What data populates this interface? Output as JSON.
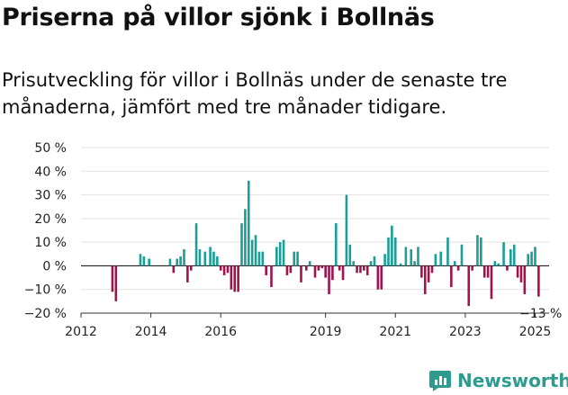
{
  "header": {
    "title": "Priserna på villor sjönk i Bollnäs",
    "subtitle": "Prisutveckling för villor i Bollnäs under de senaste tre månaderna, jämfört med tre månader tidigare."
  },
  "brand": {
    "name": "Newsworthy",
    "color": "#2f9b8e",
    "icon": "newsworthy-logo-icon"
  },
  "colors": {
    "positive": "#1a9e96",
    "negative": "#a0134e"
  },
  "chart_data": {
    "type": "bar",
    "xlim": [
      2012,
      2025.4
    ],
    "ylim": [
      -20,
      50
    ],
    "y_ticks": [
      50,
      40,
      30,
      20,
      10,
      0,
      -10,
      -20
    ],
    "y_tick_labels": [
      "50 %",
      "40 %",
      "30 %",
      "20 %",
      "10 %",
      "0 %",
      "−10 %",
      "−20 %"
    ],
    "x_ticks": [
      2012,
      2014,
      2016,
      2019,
      2021,
      2023,
      2025
    ],
    "x_tick_labels": [
      "2012",
      "2014",
      "2016",
      "2019",
      "2021",
      "2023",
      "2025"
    ],
    "grid": true,
    "last_value_label": "−13 %",
    "x": [
      2012.9,
      2013.0,
      2013.7,
      2013.8,
      2013.95,
      2014.55,
      2014.65,
      2014.75,
      2014.85,
      2014.95,
      2015.05,
      2015.15,
      2015.3,
      2015.4,
      2015.55,
      2015.7,
      2015.8,
      2015.9,
      2016.0,
      2016.1,
      2016.2,
      2016.3,
      2016.4,
      2016.5,
      2016.6,
      2016.7,
      2016.8,
      2016.9,
      2017.0,
      2017.1,
      2017.2,
      2017.3,
      2017.45,
      2017.6,
      2017.7,
      2017.8,
      2017.9,
      2018.0,
      2018.1,
      2018.2,
      2018.3,
      2018.45,
      2018.55,
      2018.7,
      2018.8,
      2018.9,
      2019.0,
      2019.1,
      2019.2,
      2019.3,
      2019.4,
      2019.5,
      2019.6,
      2019.7,
      2019.8,
      2019.9,
      2020.0,
      2020.1,
      2020.2,
      2020.3,
      2020.4,
      2020.5,
      2020.6,
      2020.7,
      2020.8,
      2020.9,
      2021.0,
      2021.15,
      2021.3,
      2021.45,
      2021.55,
      2021.65,
      2021.75,
      2021.85,
      2021.95,
      2022.05,
      2022.15,
      2022.3,
      2022.5,
      2022.6,
      2022.7,
      2022.8,
      2022.9,
      2023.1,
      2023.2,
      2023.35,
      2023.45,
      2023.55,
      2023.65,
      2023.75,
      2023.85,
      2023.95,
      2024.1,
      2024.2,
      2024.3,
      2024.4,
      2024.5,
      2024.6,
      2024.7,
      2024.8,
      2024.9,
      2025.0,
      2025.1
    ],
    "values": [
      -11,
      -15,
      5,
      4,
      3,
      3,
      -3,
      3,
      4,
      7,
      -7,
      -2,
      18,
      7,
      6,
      8,
      6,
      4,
      -2,
      -4,
      -3,
      -10,
      -11,
      -11,
      18,
      24,
      36,
      11,
      13,
      6,
      6,
      -4,
      -9,
      8,
      10,
      11,
      -4,
      -3,
      6,
      6,
      -7,
      -2,
      2,
      -5,
      -2,
      -1,
      -5,
      -12,
      -6,
      18,
      -2,
      -6,
      30,
      9,
      2,
      -3,
      -3,
      -2,
      -4,
      2,
      4,
      -10,
      -10,
      5,
      12,
      17,
      12,
      1,
      8,
      7,
      2,
      8,
      -5,
      -12,
      -7,
      -3,
      5,
      6,
      12,
      -9,
      2,
      -2,
      9,
      -17,
      -2,
      13,
      12,
      -5,
      -5,
      -14,
      2,
      1,
      10,
      -2,
      7,
      9,
      -5,
      -7,
      -12,
      5,
      6,
      8,
      -13
    ]
  }
}
